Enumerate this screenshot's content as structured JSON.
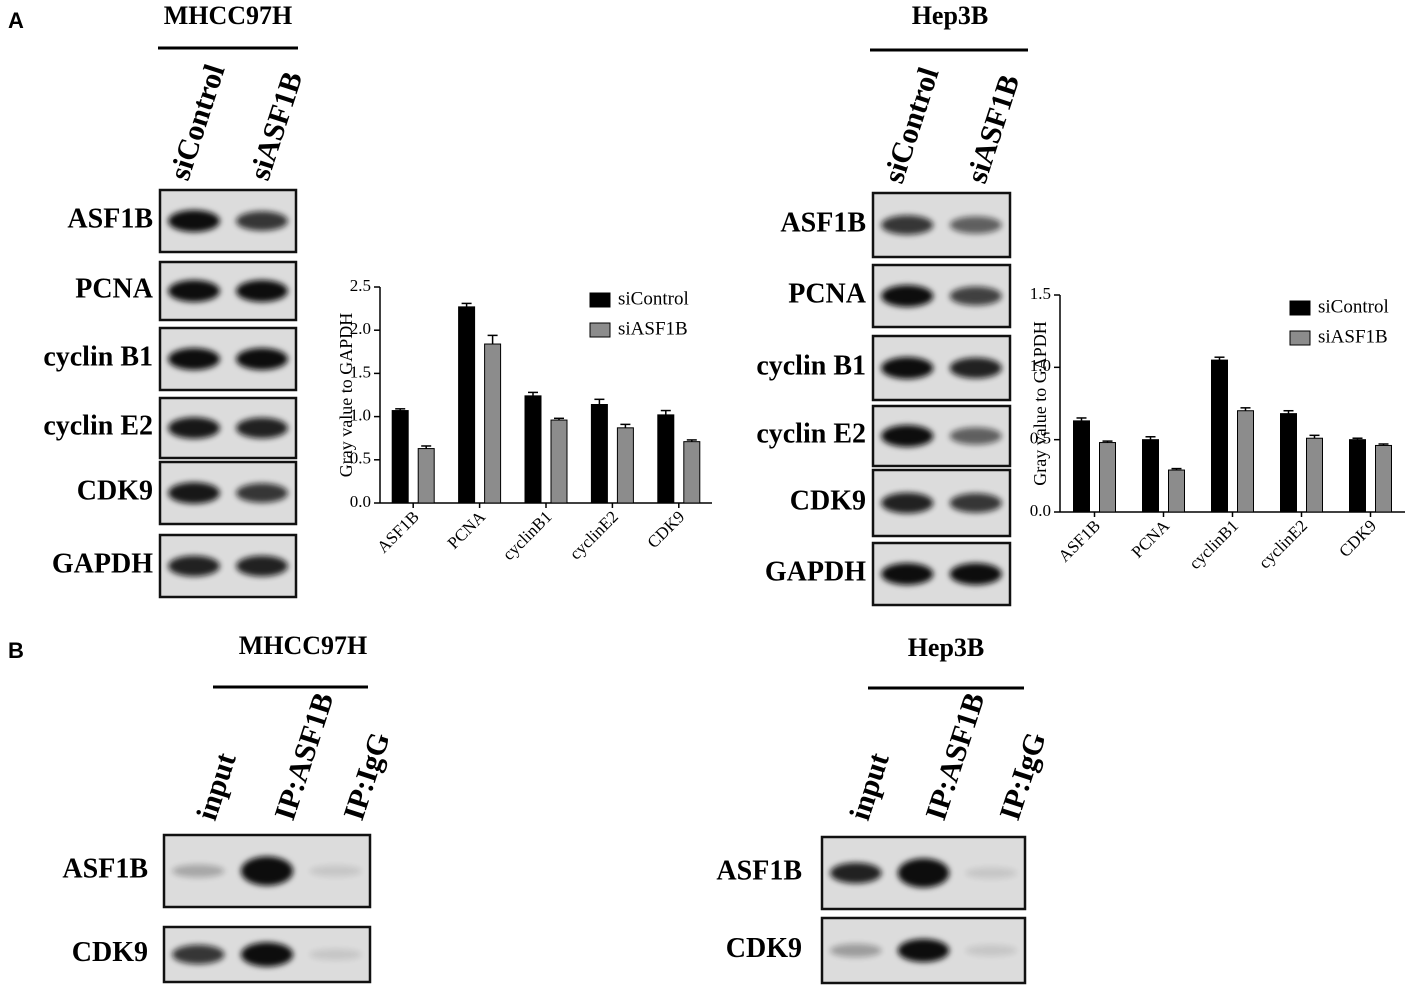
{
  "panel_labels": [
    "A",
    "B"
  ],
  "blots": [
    {
      "cell_line": "MHCC97H",
      "lanes": [
        "siControl",
        "siASF1B"
      ],
      "rows": [
        "ASF1B",
        "PCNA",
        "cyclin B1",
        "cyclin E2",
        "CDK9",
        "GAPDH"
      ]
    },
    {
      "cell_line": "Hep3B",
      "lanes": [
        "siControl",
        "siASF1B"
      ],
      "rows": [
        "ASF1B",
        "PCNA",
        "cyclin B1",
        "cyclin E2",
        "CDK9",
        "GAPDH"
      ]
    },
    {
      "cell_line": "MHCC97H",
      "lanes": [
        "input",
        "IP:ASF1B",
        "IP:IgG"
      ],
      "rows": [
        "ASF1B",
        "CDK9"
      ]
    },
    {
      "cell_line": "Hep3B",
      "lanes": [
        "input",
        "IP:ASF1B",
        "IP:IgG"
      ],
      "rows": [
        "ASF1B",
        "CDK9"
      ]
    }
  ],
  "chart_data": [
    {
      "type": "bar",
      "y_label": "Gray value to GAPDH",
      "categories": [
        "ASF1B",
        "PCNA",
        "cyclinB1",
        "cyclinE2",
        "CDK9"
      ],
      "series": [
        {
          "name": "siControl",
          "color": "#000000",
          "values": [
            1.07,
            2.27,
            1.24,
            1.14,
            1.02
          ],
          "errors": [
            0.02,
            0.04,
            0.04,
            0.06,
            0.05
          ]
        },
        {
          "name": "siASF1B",
          "color": "#8c8c8c",
          "values": [
            0.63,
            1.84,
            0.96,
            0.87,
            0.71
          ],
          "errors": [
            0.03,
            0.1,
            0.02,
            0.04,
            0.02
          ]
        }
      ],
      "ylim": [
        0,
        2.5
      ],
      "yticks": [
        {
          "value": 0,
          "label": "0.0"
        },
        0.5,
        {
          "value": 1,
          "label": "1.0"
        },
        1.5,
        {
          "value": 2,
          "label": "2.0"
        },
        2.5
      ]
    },
    {
      "type": "bar",
      "y_label": "Gray value to GAPDH",
      "categories": [
        "ASF1B",
        "PCNA",
        "cyclinB1",
        "cyclinE2",
        "CDK9"
      ],
      "series": [
        {
          "name": "siControl",
          "color": "#000000",
          "values": [
            0.63,
            0.5,
            1.05,
            0.68,
            0.5
          ],
          "errors": [
            0.02,
            0.02,
            0.02,
            0.02,
            0.01
          ]
        },
        {
          "name": "siASF1B",
          "color": "#8c8c8c",
          "values": [
            0.48,
            0.29,
            0.7,
            0.51,
            0.46
          ],
          "errors": [
            0.01,
            0.01,
            0.02,
            0.02,
            0.01
          ]
        }
      ],
      "ylim": [
        0,
        1.5
      ],
      "yticks": [
        {
          "value": 0,
          "label": "0.0"
        },
        0.5,
        {
          "value": 1,
          "label": "1.0"
        },
        1.5
      ]
    }
  ]
}
